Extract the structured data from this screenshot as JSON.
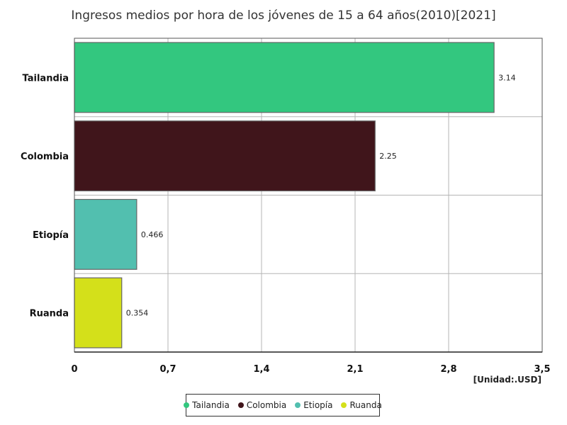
{
  "chart_data": {
    "type": "bar",
    "orientation": "horizontal",
    "title": "Ingresos medios por hora de los jóvenes de 15 a 64 años(2010)[2021]",
    "unit_label": "[Unidad:.USD]",
    "categories": [
      "Tailandia",
      "Colombia",
      "Etiopía",
      "Ruanda"
    ],
    "values": [
      3.14,
      2.25,
      0.466,
      0.354
    ],
    "value_labels": [
      "3.14",
      "2.25",
      "0.466",
      "0.354"
    ],
    "colors": [
      "#33c77f",
      "#40151b",
      "#52bfaf",
      "#d4e01a"
    ],
    "xlim": [
      0,
      3.5
    ],
    "x_ticks": [
      0,
      0.7,
      1.4,
      2.1,
      2.8,
      3.5
    ],
    "x_tick_labels": [
      "0",
      "0,7",
      "1,4",
      "2,1",
      "2,8",
      "3,5"
    ],
    "grid": true,
    "legend_position": "bottom"
  }
}
